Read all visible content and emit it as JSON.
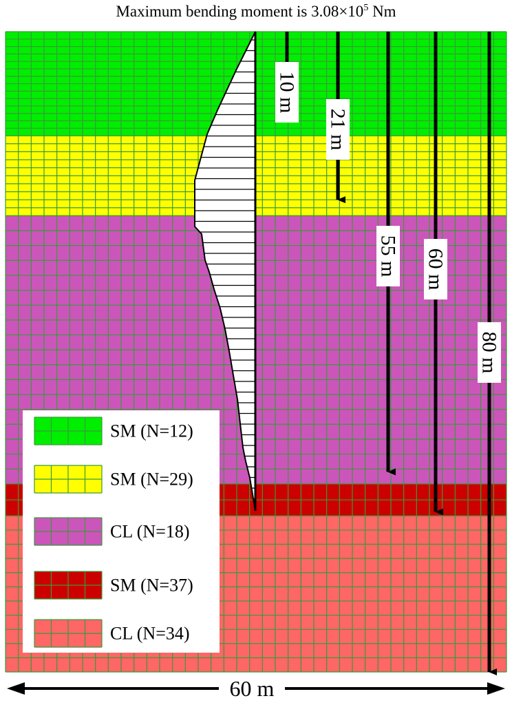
{
  "title": {
    "prefix": "Maximum bending moment is 3.08×10",
    "exponent": "5",
    "suffix": " Nm"
  },
  "layers": [
    {
      "label": "SM (N=12)",
      "color": "#00ee00",
      "top_m": 0,
      "bottom_m": 13
    },
    {
      "label": "SM (N=29)",
      "color": "#ffff00",
      "top_m": 13,
      "bottom_m": 23
    },
    {
      "label": "CL (N=18)",
      "color": "#cc55bb",
      "top_m": 23,
      "bottom_m": 56.5
    },
    {
      "label": "SM (N=37)",
      "color": "#cc0000",
      "top_m": 56.5,
      "bottom_m": 60.5
    },
    {
      "label": "CL (N=34)",
      "color": "#ff6666",
      "top_m": 60.5,
      "bottom_m": 80
    }
  ],
  "grid_color": "#3a9a3a",
  "depth_markers": [
    {
      "label": "10 m",
      "depth_m": 10
    },
    {
      "label": "21 m",
      "depth_m": 21
    },
    {
      "label": "55 m",
      "depth_m": 55
    },
    {
      "label": "60 m",
      "depth_m": 60
    },
    {
      "label": "80 m",
      "depth_m": 80
    }
  ],
  "width_label": "60 m",
  "domain_width_m": 60,
  "domain_depth_m": 80
}
